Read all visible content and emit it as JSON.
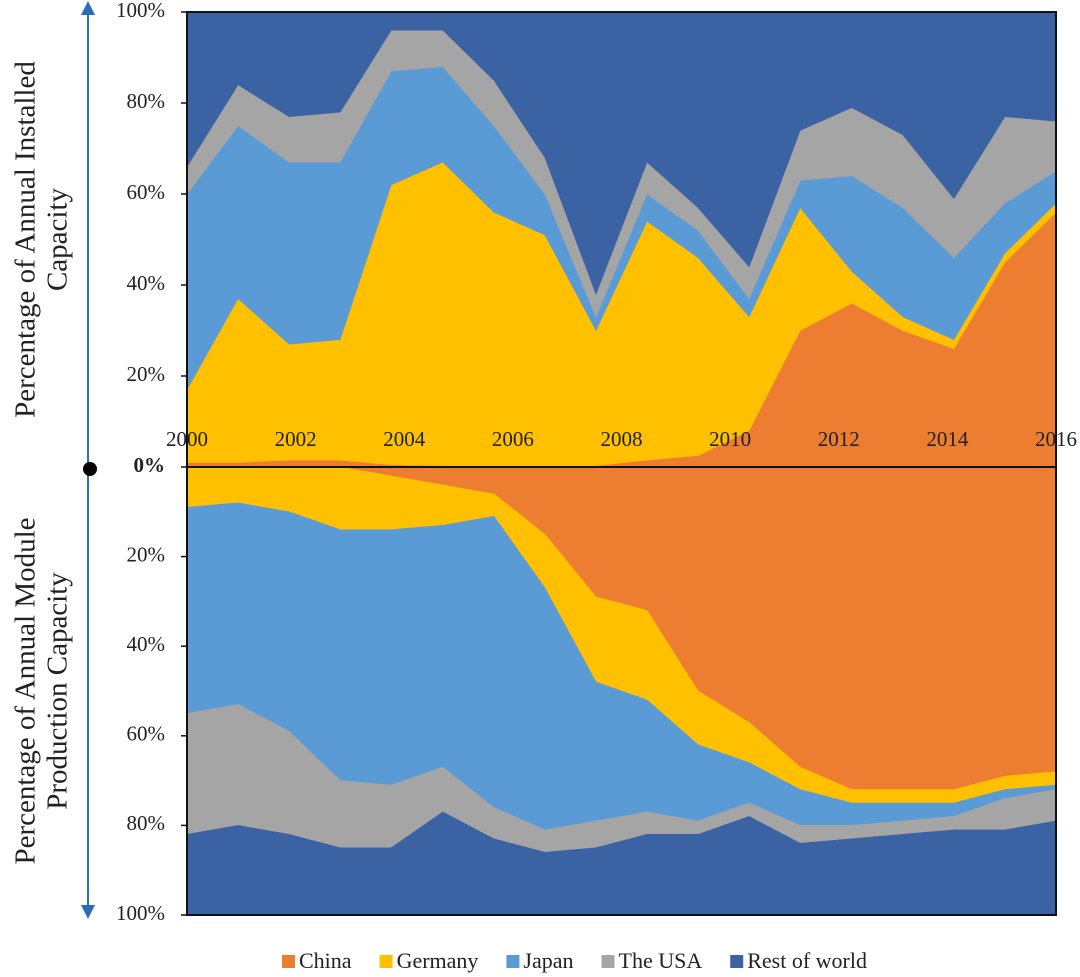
{
  "chart_data": [
    {
      "type": "stacked-area",
      "ylabel": [
        "Percentage of Annual Installed",
        "Capacity"
      ],
      "x": [
        2000,
        2000.94,
        2001.88,
        2002.82,
        2003.76,
        2004.71,
        2005.65,
        2006.59,
        2007.53,
        2008.47,
        2009.41,
        2010.35,
        2011.29,
        2012.24,
        2013.18,
        2014.12,
        2015.06,
        2016
      ],
      "xlim": [
        2000,
        2016
      ],
      "xticks": [
        2000,
        2002,
        2004,
        2006,
        2008,
        2010,
        2012,
        2014,
        2016
      ],
      "ylim": [
        0,
        100
      ],
      "yticks": [
        {
          "value": 20,
          "label": "20%"
        },
        {
          "value": 40,
          "label": "40%"
        },
        {
          "value": 60,
          "label": "60%"
        },
        {
          "value": 80,
          "label": "80%"
        },
        {
          "value": 100,
          "label": "100%"
        }
      ],
      "inverted": false,
      "series": [
        {
          "name": "China",
          "color": "#ed7d31",
          "values": [
            1,
            1,
            1.5,
            1.5,
            0.5,
            0.3,
            0.3,
            0.3,
            0.3,
            1.5,
            2.5,
            8,
            30,
            36,
            30,
            26,
            45,
            56
          ]
        },
        {
          "name": "Germany",
          "color": "#ffc000",
          "values": [
            16,
            36,
            25.5,
            26.5,
            61.5,
            66.7,
            55.7,
            50.7,
            29.7,
            52.5,
            43.5,
            25,
            27,
            7,
            3,
            2,
            2,
            2
          ]
        },
        {
          "name": "Japan",
          "color": "#5b9bd5",
          "values": [
            43,
            38,
            40,
            39,
            25,
            21,
            19,
            9,
            3,
            6,
            6,
            4,
            6,
            21,
            24,
            18,
            11,
            7
          ]
        },
        {
          "name": "The USA",
          "color": "#a5a5a5",
          "values": [
            6,
            9,
            10,
            11,
            9,
            8,
            10,
            8,
            5,
            7,
            5,
            7,
            11,
            15,
            16,
            13,
            19,
            11
          ]
        },
        {
          "name": "Rest of world",
          "color": "#3b62a3",
          "values": [
            34,
            16,
            23,
            22,
            4,
            4,
            15,
            32,
            62,
            33,
            43,
            56,
            26,
            21,
            27,
            41,
            23,
            24
          ]
        }
      ]
    },
    {
      "type": "stacked-area",
      "ylabel": [
        "Percentage of Annual Module",
        "Production Capacity"
      ],
      "x": [
        2000,
        2000.94,
        2001.88,
        2002.82,
        2003.76,
        2004.71,
        2005.65,
        2006.59,
        2007.53,
        2008.47,
        2009.41,
        2010.35,
        2011.29,
        2012.24,
        2013.18,
        2014.12,
        2015.06,
        2016
      ],
      "xlim": [
        2000,
        2016
      ],
      "ylim": [
        0,
        100
      ],
      "yticks": [
        {
          "value": 0,
          "label": "0%"
        },
        {
          "value": 20,
          "label": "20%"
        },
        {
          "value": 40,
          "label": "40%"
        },
        {
          "value": 60,
          "label": "60%"
        },
        {
          "value": 80,
          "label": "80%"
        },
        {
          "value": 100,
          "label": "100%"
        }
      ],
      "inverted": true,
      "series": [
        {
          "name": "China",
          "color": "#ed7d31",
          "values": [
            0,
            0,
            0,
            0,
            2,
            4,
            6,
            15,
            29,
            32,
            50,
            57,
            67,
            72,
            72,
            72,
            69,
            68
          ]
        },
        {
          "name": "Germany",
          "color": "#ffc000",
          "values": [
            9,
            8,
            10,
            14,
            12,
            9,
            5,
            12,
            19,
            20,
            12,
            9,
            5,
            3,
            3,
            3,
            3,
            3
          ]
        },
        {
          "name": "Japan",
          "color": "#5b9bd5",
          "values": [
            46,
            45,
            49,
            56,
            57,
            54,
            65,
            54,
            31,
            25,
            17,
            9,
            8,
            5,
            4,
            3,
            2,
            1
          ]
        },
        {
          "name": "The USA",
          "color": "#a5a5a5",
          "values": [
            27,
            27,
            23,
            15,
            14,
            10,
            7,
            5,
            6,
            5,
            3,
            3,
            4,
            3,
            3,
            3,
            7,
            7
          ]
        },
        {
          "name": "Rest of world",
          "color": "#3b62a3",
          "values": [
            18,
            20,
            18,
            15,
            15,
            23,
            17,
            14,
            15,
            18,
            18,
            22,
            16,
            17,
            18,
            19,
            19,
            21
          ]
        }
      ]
    }
  ]
}
